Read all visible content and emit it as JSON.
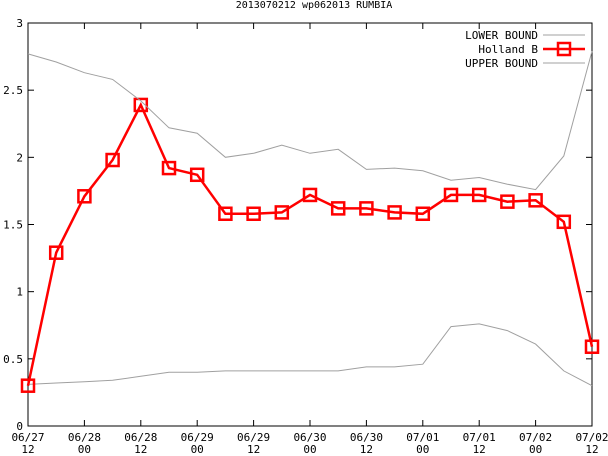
{
  "chart_data": {
    "type": "line",
    "title": "2013070212 wp062013 RUMBIA",
    "xlabel": "",
    "ylabel": "",
    "ylim": [
      0,
      3
    ],
    "yticks": [
      {
        "value": 0,
        "label": "0"
      },
      {
        "value": 0.5,
        "label": "0.5"
      },
      {
        "value": 1,
        "label": "1"
      },
      {
        "value": 1.5,
        "label": "1.5"
      },
      {
        "value": 2,
        "label": "2"
      },
      {
        "value": 2.5,
        "label": "2.5"
      },
      {
        "value": 3,
        "label": "3"
      }
    ],
    "xticks": [
      {
        "value": 0,
        "date": "06/27",
        "hour": "12"
      },
      {
        "value": 2,
        "date": "06/28",
        "hour": "00"
      },
      {
        "value": 4,
        "date": "06/28",
        "hour": "12"
      },
      {
        "value": 6,
        "date": "06/29",
        "hour": "00"
      },
      {
        "value": 8,
        "date": "06/29",
        "hour": "12"
      },
      {
        "value": 10,
        "date": "06/30",
        "hour": "00"
      },
      {
        "value": 12,
        "date": "06/30",
        "hour": "12"
      },
      {
        "value": 14,
        "date": "07/01",
        "hour": "00"
      },
      {
        "value": 16,
        "date": "07/01",
        "hour": "12"
      },
      {
        "value": 18,
        "date": "07/02",
        "hour": "00"
      },
      {
        "value": 20,
        "date": "07/02",
        "hour": "12"
      }
    ],
    "xlim": [
      0,
      20
    ],
    "legend_position": "top-right",
    "grid": false,
    "series": [
      {
        "name": "LOWER BOUND",
        "color": "#a0a0a0",
        "x": [
          0,
          1,
          2,
          3,
          4,
          5,
          6,
          7,
          8,
          9,
          10,
          11,
          12,
          13,
          14,
          15,
          16,
          17,
          18,
          19,
          20
        ],
        "values": [
          0.31,
          0.32,
          0.33,
          0.34,
          0.37,
          0.4,
          0.4,
          0.41,
          0.41,
          0.41,
          0.41,
          0.41,
          0.44,
          0.44,
          0.46,
          0.74,
          0.76,
          0.71,
          0.61,
          0.41,
          0.3
        ]
      },
      {
        "name": "Holland B",
        "color": "#ff0000",
        "marker": "square",
        "x": [
          0,
          1,
          2,
          3,
          4,
          5,
          6,
          7,
          8,
          9,
          10,
          11,
          12,
          13,
          14,
          15,
          16,
          17,
          18,
          19,
          20
        ],
        "values": [
          0.3,
          1.29,
          1.71,
          1.98,
          2.39,
          1.92,
          1.87,
          1.58,
          1.58,
          1.59,
          1.72,
          1.62,
          1.62,
          1.59,
          1.58,
          1.72,
          1.72,
          1.67,
          1.68,
          1.52,
          0.59
        ]
      },
      {
        "name": "UPPER BOUND",
        "color": "#a0a0a0",
        "x": [
          0,
          1,
          2,
          3,
          4,
          5,
          6,
          7,
          8,
          9,
          10,
          11,
          12,
          13,
          14,
          15,
          16,
          17,
          18,
          19,
          20
        ],
        "values": [
          2.77,
          2.71,
          2.63,
          2.58,
          2.42,
          2.22,
          2.18,
          2.0,
          2.03,
          2.09,
          2.03,
          2.06,
          1.91,
          1.92,
          1.9,
          1.83,
          1.85,
          1.8,
          1.76,
          2.01,
          2.79
        ]
      }
    ]
  }
}
